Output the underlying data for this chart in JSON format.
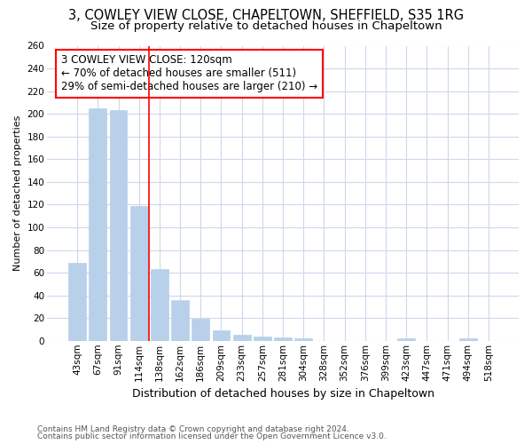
{
  "title_line1": "3, COWLEY VIEW CLOSE, CHAPELTOWN, SHEFFIELD, S35 1RG",
  "title_line2": "Size of property relative to detached houses in Chapeltown",
  "xlabel": "Distribution of detached houses by size in Chapeltown",
  "ylabel": "Number of detached properties",
  "footer_line1": "Contains HM Land Registry data © Crown copyright and database right 2024.",
  "footer_line2": "Contains public sector information licensed under the Open Government Licence v3.0.",
  "categories": [
    "43sqm",
    "67sqm",
    "91sqm",
    "114sqm",
    "138sqm",
    "162sqm",
    "186sqm",
    "209sqm",
    "233sqm",
    "257sqm",
    "281sqm",
    "304sqm",
    "328sqm",
    "352sqm",
    "376sqm",
    "399sqm",
    "423sqm",
    "447sqm",
    "471sqm",
    "494sqm",
    "518sqm"
  ],
  "values": [
    69,
    205,
    203,
    119,
    63,
    36,
    19,
    9,
    5,
    4,
    3,
    2,
    0,
    0,
    0,
    0,
    2,
    0,
    0,
    2,
    0
  ],
  "bar_color": "#b8d0ea",
  "bar_edge_color": "#b8d0ea",
  "grid_color": "#ccd8ec",
  "vline_x_index": 3,
  "vline_color": "red",
  "annotation_text": "3 COWLEY VIEW CLOSE: 120sqm\n← 70% of detached houses are smaller (511)\n29% of semi-detached houses are larger (210) →",
  "annotation_box_color": "white",
  "annotation_box_edge_color": "red",
  "ylim": [
    0,
    260
  ],
  "yticks": [
    0,
    20,
    40,
    60,
    80,
    100,
    120,
    140,
    160,
    180,
    200,
    220,
    240,
    260
  ],
  "background_color": "#ffffff",
  "plot_background_color": "#ffffff",
  "title_fontsize": 10.5,
  "subtitle_fontsize": 9.5,
  "annotation_fontsize": 8.5,
  "xlabel_fontsize": 9,
  "ylabel_fontsize": 8,
  "tick_fontsize": 7.5,
  "footer_fontsize": 6.5
}
